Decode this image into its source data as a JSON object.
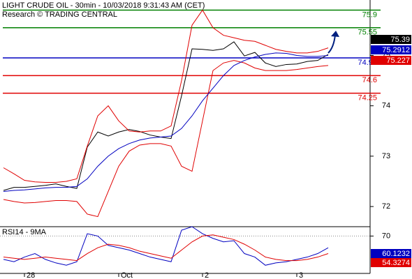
{
  "chart_data": [
    {
      "type": "line",
      "title": "LIGHT CRUDE OIL - 30min - 10/03/2018 9:31:43 AM (CET)",
      "subtitle": "Research © TRADING CENTRAL",
      "categories": [
        null,
        null,
        "28",
        null,
        null,
        null,
        null,
        null,
        null,
        null,
        null,
        "Oct",
        null,
        null,
        null,
        null,
        null,
        null,
        null,
        "2",
        null,
        null,
        null,
        null,
        null,
        null,
        null,
        null,
        "3",
        null,
        null,
        null
      ],
      "ylim": [
        71.6,
        76.1
      ],
      "yticks": [
        72,
        73,
        74,
        75
      ],
      "series": [
        {
          "color": "#000000",
          "values": [
            72.32,
            72.38,
            72.38,
            72.4,
            72.42,
            72.45,
            72.4,
            72.36,
            73.18,
            73.48,
            73.4,
            73.48,
            73.53,
            73.49,
            73.42,
            73.38,
            73.35,
            74.2,
            75.13,
            75.12,
            75.1,
            75.13,
            75.27,
            74.99,
            75.06,
            74.85,
            74.78,
            74.82,
            74.83,
            74.88,
            74.9,
            75.02
          ]
        },
        {
          "color": "#e00000",
          "values": [
            72.77,
            72.65,
            72.52,
            72.49,
            72.48,
            72.48,
            72.5,
            72.55,
            73.2,
            73.8,
            74.0,
            73.7,
            73.5,
            73.48,
            73.5,
            73.5,
            73.6,
            74.5,
            75.6,
            75.9,
            75.55,
            75.4,
            75.35,
            75.3,
            75.28,
            75.2,
            75.12,
            75.08,
            75.05,
            75.05,
            75.08,
            75.15
          ]
        },
        {
          "color": "#e00000",
          "values": [
            72.14,
            72.1,
            72.07,
            72.08,
            72.1,
            72.12,
            72.12,
            72.1,
            71.85,
            71.8,
            72.3,
            72.8,
            73.1,
            73.22,
            73.25,
            73.25,
            73.2,
            72.8,
            72.7,
            73.7,
            74.7,
            74.85,
            74.9,
            74.85,
            74.75,
            74.7,
            74.7,
            74.7,
            74.72,
            74.75,
            74.78,
            74.8
          ]
        },
        {
          "color": "#0000c0",
          "values": [
            72.3,
            72.32,
            72.33,
            72.35,
            72.37,
            72.38,
            72.38,
            72.4,
            72.55,
            72.8,
            73.0,
            73.15,
            73.25,
            73.32,
            73.36,
            73.38,
            73.4,
            73.55,
            73.8,
            74.1,
            74.35,
            74.6,
            74.8,
            74.9,
            74.97,
            75.02,
            75.05,
            75.04,
            75.0,
            74.98,
            74.98,
            75.0
          ]
        }
      ],
      "levels": [
        {
          "value": 75.9,
          "color": "#008000"
        },
        {
          "value": 75.55,
          "color": "#008000"
        },
        {
          "value": 74.95,
          "color": "#0000c0"
        },
        {
          "value": 74.6,
          "color": "#e00000"
        },
        {
          "value": 74.25,
          "color": "#e00000"
        }
      ],
      "markers": [
        {
          "value": 75.39,
          "color": "#000000"
        },
        {
          "value": 75.2912,
          "color": "#0000c0"
        },
        {
          "value": 75.227,
          "color": "#e00000"
        }
      ]
    },
    {
      "type": "line",
      "title": "RSI14 - 9MA",
      "ylim": [
        38,
        78
      ],
      "yticks": [
        70
      ],
      "series": [
        {
          "color": "#0000c0",
          "values": [
            50,
            48,
            52,
            55,
            50,
            47,
            45,
            48,
            72,
            70,
            62,
            60,
            58,
            55,
            52,
            50,
            48,
            75,
            78,
            72,
            68,
            65,
            66,
            55,
            52,
            45,
            47,
            48,
            50,
            52,
            55,
            60
          ]
        },
        {
          "color": "#e00000",
          "values": [
            52,
            51,
            50,
            51,
            52,
            51,
            50,
            49,
            55,
            60,
            63,
            62,
            60,
            57,
            55,
            53,
            51,
            58,
            65,
            70,
            71,
            69,
            67,
            63,
            58,
            52,
            50,
            49,
            49,
            50,
            52,
            55
          ]
        }
      ],
      "markers": [
        {
          "value": 60.1232,
          "color": "#0000c0"
        },
        {
          "value": 54.3274,
          "color": "#e00000"
        }
      ]
    }
  ]
}
